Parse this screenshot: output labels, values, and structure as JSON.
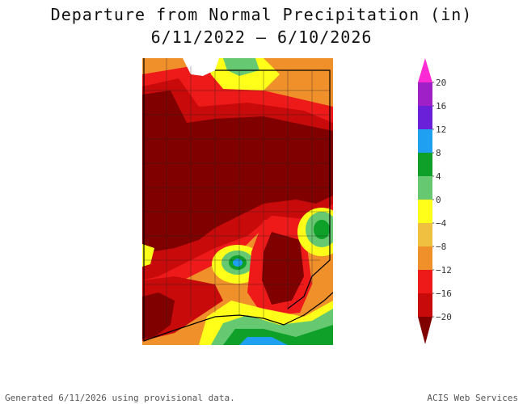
{
  "title": {
    "line1": "Departure from Normal Precipitation (in)",
    "line2": "6/11/2022 – 6/10/2026"
  },
  "legend": {
    "labels": [
      "20",
      "16",
      "12",
      "8",
      "4",
      "0",
      "−4",
      "−8",
      "−12",
      "−16",
      "−20"
    ],
    "colors": {
      "over20": "#ff2ad4",
      "16_20": "#a020c8",
      "12_16": "#6a1fd8",
      "8_12": "#1fa0f0",
      "4_8": "#0fa02a",
      "0_4": "#66c870",
      "m4_0": "#ffff1a",
      "m8_m4": "#f0c040",
      "m12_m8": "#f0902a",
      "m16_m12": "#ee1a1a",
      "m20_m16": "#c80a0a",
      "under_m20": "#800000"
    }
  },
  "footer": {
    "left": "Generated 6/11/2026  using provisional data.",
    "right": "ACIS Web Services"
  }
}
